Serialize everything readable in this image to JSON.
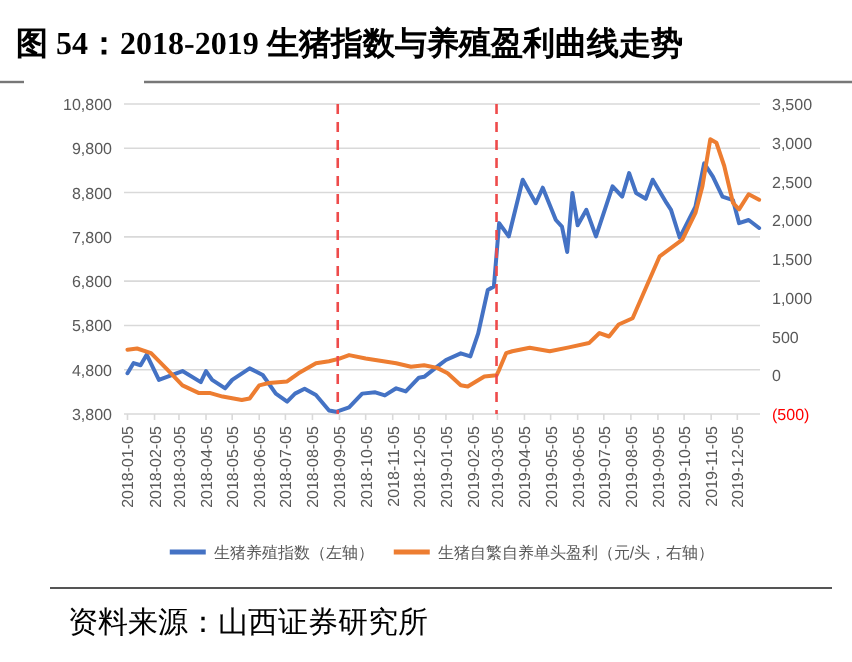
{
  "chart_data": {
    "type": "line",
    "title": "图 54：2018-2019 生猪指数与养殖盈利曲线走势",
    "annotations": [
      "资料来源：山西证券研究所"
    ],
    "xlim": [
      "2018-01-01",
      "2019-12-31"
    ],
    "xticks": [
      "2018-01-05",
      "2018-02-05",
      "2018-03-05",
      "2018-04-05",
      "2018-05-05",
      "2018-06-05",
      "2018-07-05",
      "2018-08-05",
      "2018-09-05",
      "2018-10-05",
      "2018-11-05",
      "2018-12-05",
      "2019-01-05",
      "2019-02-05",
      "2019-03-05",
      "2019-04-05",
      "2019-05-05",
      "2019-06-05",
      "2019-07-05",
      "2019-08-05",
      "2019-09-05",
      "2019-10-05",
      "2019-11-05",
      "2019-12-05"
    ],
    "ylim": [
      3800,
      10800
    ],
    "yticks": [
      {
        "value": 3800,
        "label": "3,800"
      },
      {
        "value": 4800,
        "label": "4,800"
      },
      {
        "value": 5800,
        "label": "5,800"
      },
      {
        "value": 6800,
        "label": "6,800"
      },
      {
        "value": 7800,
        "label": "7,800"
      },
      {
        "value": 8800,
        "label": "8,800"
      },
      {
        "value": 9800,
        "label": "9,800"
      },
      {
        "value": 10800,
        "label": "10,800"
      }
    ],
    "y2lim": [
      -500,
      3500
    ],
    "y2ticks": [
      {
        "value": -500,
        "label": "(500)"
      },
      0,
      500,
      {
        "value": 1000,
        "label": "1,000"
      },
      {
        "value": 1500,
        "label": "1,500"
      },
      {
        "value": 2000,
        "label": "2,000"
      },
      {
        "value": 2500,
        "label": "2,500"
      },
      {
        "value": 3000,
        "label": "3,000"
      },
      {
        "value": 3500,
        "label": "3,500"
      }
    ],
    "grid": "y",
    "legend": "bottom",
    "ref_lines": [
      {
        "axis": "x",
        "value": "2018-09-03",
        "color": "#ee4b4b",
        "line_style": "dashed"
      },
      {
        "axis": "x",
        "value": "2019-03-04",
        "color": "#ee4b4b",
        "line_style": "dashed"
      }
    ],
    "series": [
      {
        "name": "生猪养殖指数（左轴）",
        "color": "#4472c4",
        "axis": "y",
        "x": [
          "2018-01-05",
          "2018-01-12",
          "2018-01-20",
          "2018-01-27",
          "2018-02-10",
          "2018-03-09",
          "2018-03-30",
          "2018-04-05",
          "2018-04-12",
          "2018-04-27",
          "2018-05-05",
          "2018-05-25",
          "2018-06-09",
          "2018-06-24",
          "2018-07-07",
          "2018-07-16",
          "2018-07-27",
          "2018-08-09",
          "2018-08-24",
          "2018-09-01",
          "2018-09-16",
          "2018-10-01",
          "2018-10-16",
          "2018-10-27",
          "2018-11-09",
          "2018-11-20",
          "2018-12-05",
          "2018-12-11",
          "2018-12-26",
          "2019-01-05",
          "2019-01-22",
          "2019-02-02",
          "2019-02-11",
          "2019-02-22",
          "2019-03-01",
          "2019-03-07",
          "2019-03-18",
          "2019-04-03",
          "2019-04-18",
          "2019-04-26",
          "2019-05-11",
          "2019-05-18",
          "2019-05-24",
          "2019-05-30",
          "2019-06-05",
          "2019-06-15",
          "2019-06-26",
          "2019-07-15",
          "2019-07-26",
          "2019-08-03",
          "2019-08-11",
          "2019-08-22",
          "2019-08-30",
          "2019-09-15",
          "2019-09-20",
          "2019-09-30",
          "2019-10-18",
          "2019-10-28",
          "2019-11-07",
          "2019-11-18",
          "2019-11-30",
          "2019-12-07",
          "2019-12-18",
          "2019-12-30"
        ],
        "values": [
          4720,
          4950,
          4900,
          5140,
          4570,
          4770,
          4520,
          4770,
          4570,
          4380,
          4570,
          4830,
          4680,
          4260,
          4080,
          4260,
          4370,
          4230,
          3880,
          3850,
          3950,
          4260,
          4290,
          4220,
          4380,
          4310,
          4620,
          4640,
          4870,
          5020,
          5170,
          5100,
          5620,
          6600,
          6680,
          8110,
          7810,
          9090,
          8560,
          8910,
          8180,
          8030,
          7460,
          8790,
          8060,
          8410,
          7810,
          8940,
          8710,
          9240,
          8790,
          8660,
          9090,
          8560,
          8410,
          7780,
          8480,
          9460,
          9160,
          8710,
          8630,
          8110,
          8180,
          8000
        ]
      },
      {
        "name": "生猪自繁自养单头盈利（元/头，右轴）",
        "color": "#ed7d31",
        "axis": "y2",
        "x": [
          "2018-01-05",
          "2018-01-16",
          "2018-02-01",
          "2018-02-20",
          "2018-03-09",
          "2018-03-28",
          "2018-04-10",
          "2018-04-24",
          "2018-05-16",
          "2018-05-25",
          "2018-06-05",
          "2018-06-16",
          "2018-07-07",
          "2018-07-20",
          "2018-08-09",
          "2018-08-24",
          "2018-09-05",
          "2018-09-16",
          "2018-10-05",
          "2018-11-09",
          "2018-11-26",
          "2018-12-11",
          "2018-12-26",
          "2019-01-07",
          "2019-01-22",
          "2019-01-30",
          "2019-02-18",
          "2019-03-04",
          "2019-03-07",
          "2019-03-15",
          "2019-03-22",
          "2019-04-11",
          "2019-05-04",
          "2019-05-26",
          "2019-06-18",
          "2019-06-30",
          "2019-07-11",
          "2019-07-22",
          "2019-08-07",
          "2019-08-18",
          "2019-09-07",
          "2019-10-03",
          "2019-10-18",
          "2019-10-26",
          "2019-11-04",
          "2019-11-11",
          "2019-11-20",
          "2019-11-30",
          "2019-12-07",
          "2019-12-18",
          "2019-12-30"
        ],
        "values": [
          330,
          345,
          285,
          70,
          -130,
          -230,
          -230,
          -275,
          -320,
          -300,
          -130,
          -100,
          -80,
          25,
          155,
          180,
          215,
          260,
          215,
          155,
          110,
          130,
          95,
          25,
          -130,
          -145,
          -15,
          0,
          70,
          285,
          310,
          355,
          310,
          360,
          415,
          545,
          500,
          655,
          735,
          1020,
          1535,
          1750,
          2095,
          2440,
          3045,
          3000,
          2700,
          2225,
          2140,
          2335,
          2265
        ]
      }
    ]
  }
}
